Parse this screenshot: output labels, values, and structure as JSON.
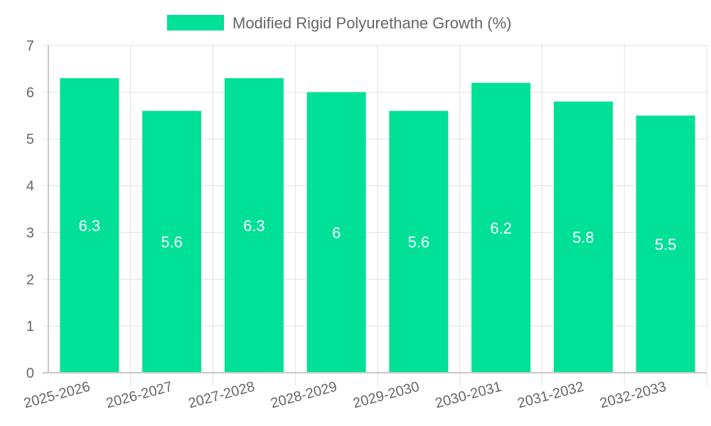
{
  "chart_data": {
    "type": "bar",
    "title": "",
    "xlabel": "",
    "ylabel": "",
    "categories": [
      "2025-2026",
      "2026-2027",
      "2027-2028",
      "2028-2029",
      "2029-2030",
      "2030-2031",
      "2031-2032",
      "2032-2033"
    ],
    "series": [
      {
        "name": "Modified Rigid Polyurethane Growth (%)",
        "values": [
          6.3,
          5.6,
          6.3,
          6,
          5.6,
          6.2,
          5.8,
          5.5
        ],
        "data_labels": [
          "6.3",
          "5.6",
          "6.3",
          "6",
          "5.6",
          "6.2",
          "5.8",
          "5.5"
        ],
        "color": "#00e096"
      }
    ],
    "ylim": [
      0,
      7
    ],
    "yticks": [
      "0",
      "1",
      "2",
      "3",
      "4",
      "5",
      "6",
      "7"
    ],
    "grid": true,
    "legend_position": "top-center"
  },
  "colors": {
    "bar": "#00e096",
    "grid": "#e1e1e1",
    "axis": "#c8c8c8",
    "text": "#666666",
    "data_label": "#ffffff"
  }
}
